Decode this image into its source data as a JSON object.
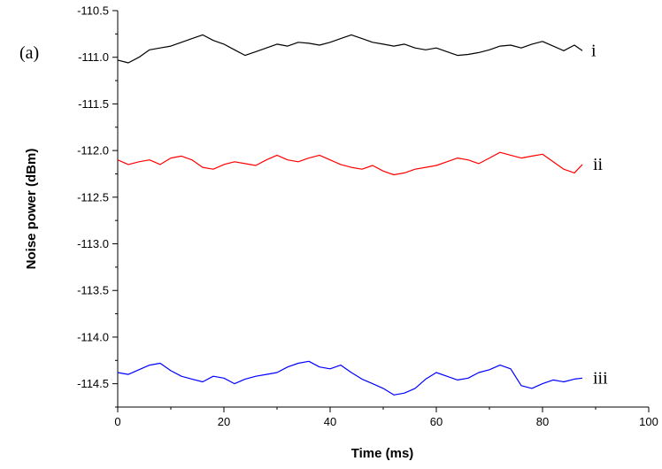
{
  "chart_data": {
    "type": "line",
    "panel_label": "(a)",
    "xlabel": "Time (ms)",
    "ylabel": "Noise power (dBm)",
    "xlim": [
      0,
      100
    ],
    "ylim": [
      -114.75,
      -110.5
    ],
    "xticks": [
      0,
      20,
      40,
      60,
      80,
      100
    ],
    "xtick_labels": [
      "0",
      "20",
      "40",
      "60",
      "80",
      "100"
    ],
    "yticks": [
      -110.5,
      -111.0,
      -111.5,
      -112.0,
      -112.5,
      -113.0,
      -113.5,
      -114.0,
      -114.5
    ],
    "ytick_labels": [
      "-110.5",
      "-111.0",
      "-111.5",
      "-112.0",
      "-112.5",
      "-113.0",
      "-113.5",
      "-114.0",
      "-114.5"
    ],
    "grid": false,
    "legend": "none",
    "series": [
      {
        "label": "i",
        "color": "#000000",
        "x": [
          0,
          2,
          4,
          6,
          8,
          10,
          12,
          14,
          16,
          18,
          20,
          22,
          24,
          26,
          28,
          30,
          32,
          34,
          36,
          38,
          40,
          42,
          44,
          46,
          48,
          50,
          52,
          54,
          56,
          58,
          60,
          62,
          64,
          66,
          68,
          70,
          72,
          74,
          76,
          78,
          80,
          82,
          84,
          86,
          87.5
        ],
        "y": [
          -111.03,
          -111.06,
          -111.0,
          -110.92,
          -110.9,
          -110.88,
          -110.84,
          -110.8,
          -110.76,
          -110.82,
          -110.86,
          -110.92,
          -110.98,
          -110.94,
          -110.9,
          -110.86,
          -110.88,
          -110.84,
          -110.85,
          -110.87,
          -110.84,
          -110.8,
          -110.76,
          -110.8,
          -110.84,
          -110.86,
          -110.88,
          -110.86,
          -110.9,
          -110.92,
          -110.9,
          -110.94,
          -110.98,
          -110.97,
          -110.95,
          -110.92,
          -110.88,
          -110.87,
          -110.9,
          -110.86,
          -110.83,
          -110.88,
          -110.93,
          -110.87,
          -110.93
        ]
      },
      {
        "label": "ii",
        "color": "#ff0000",
        "x": [
          0,
          2,
          4,
          6,
          8,
          10,
          12,
          14,
          16,
          18,
          20,
          22,
          24,
          26,
          28,
          30,
          32,
          34,
          36,
          38,
          40,
          42,
          44,
          46,
          48,
          50,
          52,
          54,
          56,
          58,
          60,
          62,
          64,
          66,
          68,
          70,
          72,
          74,
          76,
          78,
          80,
          82,
          84,
          86,
          87.5
        ],
        "y": [
          -112.1,
          -112.15,
          -112.12,
          -112.1,
          -112.15,
          -112.08,
          -112.06,
          -112.1,
          -112.18,
          -112.2,
          -112.15,
          -112.12,
          -112.14,
          -112.16,
          -112.1,
          -112.05,
          -112.1,
          -112.12,
          -112.08,
          -112.05,
          -112.1,
          -112.15,
          -112.18,
          -112.2,
          -112.16,
          -112.22,
          -112.26,
          -112.24,
          -112.2,
          -112.18,
          -112.16,
          -112.12,
          -112.08,
          -112.1,
          -112.14,
          -112.08,
          -112.02,
          -112.05,
          -112.08,
          -112.06,
          -112.04,
          -112.12,
          -112.2,
          -112.24,
          -112.15
        ]
      },
      {
        "label": "iii",
        "color": "#0000ff",
        "x": [
          0,
          2,
          4,
          6,
          8,
          10,
          12,
          14,
          16,
          18,
          20,
          22,
          24,
          26,
          28,
          30,
          32,
          34,
          36,
          38,
          40,
          42,
          44,
          46,
          48,
          50,
          52,
          54,
          56,
          58,
          60,
          62,
          64,
          66,
          68,
          70,
          72,
          74,
          76,
          78,
          80,
          82,
          84,
          86,
          87.5
        ],
        "y": [
          -114.38,
          -114.4,
          -114.35,
          -114.3,
          -114.28,
          -114.36,
          -114.42,
          -114.45,
          -114.48,
          -114.42,
          -114.44,
          -114.5,
          -114.45,
          -114.42,
          -114.4,
          -114.38,
          -114.32,
          -114.28,
          -114.26,
          -114.32,
          -114.34,
          -114.3,
          -114.38,
          -114.45,
          -114.5,
          -114.55,
          -114.62,
          -114.6,
          -114.55,
          -114.45,
          -114.38,
          -114.42,
          -114.46,
          -114.44,
          -114.38,
          -114.35,
          -114.3,
          -114.34,
          -114.52,
          -114.55,
          -114.5,
          -114.46,
          -114.48,
          -114.45,
          -114.44
        ]
      }
    ]
  }
}
